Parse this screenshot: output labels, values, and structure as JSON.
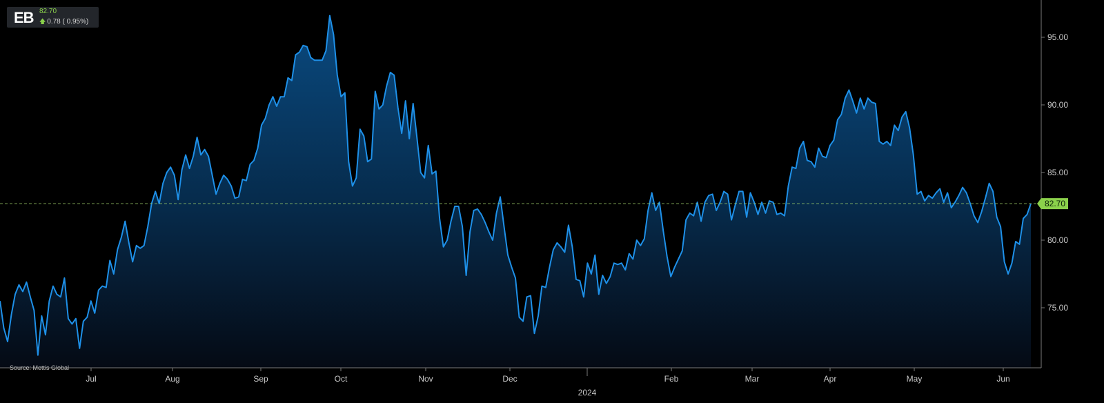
{
  "ticker": {
    "symbol": "EB",
    "price": "82.70",
    "change": "0.78",
    "change_pct": "( 0.95%)"
  },
  "source": "Source: Mettis Global",
  "colors": {
    "line": "#1e90e8",
    "fill_top": "#0a4a80",
    "up": "#8bd14b",
    "reference": "#9fcf6a"
  },
  "chart_data": {
    "type": "area",
    "series": [
      {
        "values": [
          75.5,
          73.5,
          72.5,
          74.5,
          76.0,
          76.7,
          76.2,
          76.9,
          75.8,
          74.8,
          71.5,
          74.4,
          73.0,
          75.5,
          76.6,
          76.0,
          75.8,
          77.2,
          74.2,
          73.8,
          74.2,
          72.0,
          74.0,
          74.3,
          75.5,
          74.6,
          76.3,
          76.6,
          76.5,
          78.5,
          77.5,
          79.3,
          80.2,
          81.4,
          79.8,
          78.4,
          79.6,
          79.4,
          79.6,
          81.0,
          82.7,
          83.6,
          82.7,
          84.2,
          85.0,
          85.4,
          84.8,
          83.0,
          85.2,
          86.3,
          85.3,
          86.2,
          87.6,
          86.3,
          86.7,
          86.2,
          84.8,
          83.4,
          84.2,
          84.8,
          84.5,
          84.0,
          83.1,
          83.2,
          84.5,
          84.4,
          85.6,
          85.9,
          86.8,
          88.5,
          89.0,
          90.0,
          90.6,
          89.9,
          90.6,
          90.6,
          92.0,
          91.8,
          93.7,
          93.9,
          94.4,
          94.3,
          93.5,
          93.3,
          93.3,
          93.3,
          94.0,
          96.6,
          95.2,
          92.2,
          90.6,
          90.9,
          85.8,
          84.0,
          84.6,
          88.2,
          87.7,
          85.8,
          86.0,
          91.0,
          89.7,
          90.0,
          91.4,
          92.4,
          92.2,
          89.8,
          87.9,
          90.3,
          87.5,
          90.1,
          87.6,
          85.0,
          84.6,
          87.0,
          84.9,
          85.1,
          81.6,
          79.5,
          80.0,
          81.4,
          82.5,
          82.5,
          81.0,
          77.4,
          80.6,
          82.2,
          82.3,
          81.9,
          81.3,
          80.6,
          80.0,
          82.0,
          83.2,
          81.0,
          78.9,
          78.0,
          77.2,
          74.3,
          74.0,
          75.8,
          75.9,
          73.1,
          74.4,
          76.6,
          76.5,
          78.0,
          79.3,
          79.8,
          79.5,
          79.1,
          81.1,
          79.5,
          77.1,
          77.0,
          75.8,
          78.3,
          77.5,
          78.9,
          76.0,
          77.4,
          76.8,
          77.3,
          78.3,
          78.2,
          78.3,
          77.8,
          79.0,
          78.6,
          80.0,
          79.6,
          80.1,
          82.2,
          83.5,
          82.2,
          82.8,
          80.7,
          78.8,
          77.3,
          78.0,
          78.6,
          79.2,
          81.5,
          82.0,
          81.8,
          82.8,
          81.4,
          82.8,
          83.3,
          83.4,
          82.2,
          82.8,
          83.6,
          83.4,
          81.5,
          82.6,
          83.6,
          83.6,
          81.7,
          83.5,
          82.8,
          81.9,
          82.8,
          82.0,
          82.9,
          82.8,
          81.9,
          82.0,
          81.8,
          84.0,
          85.4,
          85.3,
          86.8,
          87.3,
          85.9,
          85.8,
          85.4,
          86.8,
          86.2,
          86.1,
          87.0,
          87.4,
          88.9,
          89.3,
          90.5,
          91.1,
          90.3,
          89.4,
          90.5,
          89.7,
          90.5,
          90.2,
          90.1,
          87.3,
          87.1,
          87.3,
          87.0,
          88.5,
          88.1,
          89.1,
          89.5,
          88.3,
          86.3,
          83.4,
          83.6,
          82.9,
          83.3,
          83.1,
          83.5,
          83.8,
          82.8,
          83.5,
          82.4,
          82.8,
          83.3,
          83.9,
          83.5,
          82.7,
          81.8,
          81.3,
          82.1,
          83.1,
          84.2,
          83.6,
          81.7,
          81.0,
          78.4,
          77.5,
          78.3,
          79.9,
          79.7,
          81.6,
          81.9,
          82.7
        ]
      }
    ],
    "x_labels": [
      "Jul",
      "Aug",
      "Sep",
      "Oct",
      "Nov",
      "Dec",
      "2024",
      "Feb",
      "Mar",
      "Apr",
      "May",
      "Jun"
    ],
    "y_ticks": [
      "75.00",
      "80.00",
      "85.00",
      "90.00",
      "95.00"
    ],
    "ylim": [
      70.5,
      97.3
    ],
    "reference_line": 82.7,
    "last_value_label": "82.70",
    "grid": false
  }
}
